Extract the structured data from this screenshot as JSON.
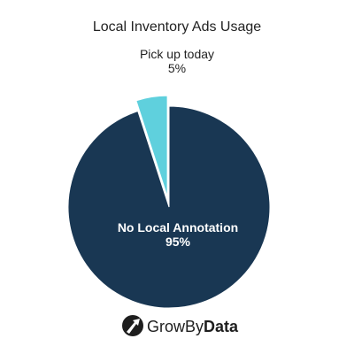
{
  "chart_data": {
    "type": "pie",
    "title": "Local Inventory Ads Usage",
    "slices": [
      {
        "label": "No Local Annotation",
        "value": 95,
        "value_label": "95%",
        "color": "#193753",
        "label_color": "#ffffff",
        "label_placement": "inside",
        "exploded": false
      },
      {
        "label": "Pick up today",
        "value": 5,
        "value_label": "5%",
        "color": "#5fd0dd",
        "label_color": "#222222",
        "label_placement": "outside",
        "exploded": true
      }
    ]
  },
  "logo": {
    "text_regular": "Grow",
    "text_medium": "By",
    "text_bold": "Data",
    "icon": "growbydata-arrow-icon",
    "mark_color": "#1e1e1e"
  }
}
